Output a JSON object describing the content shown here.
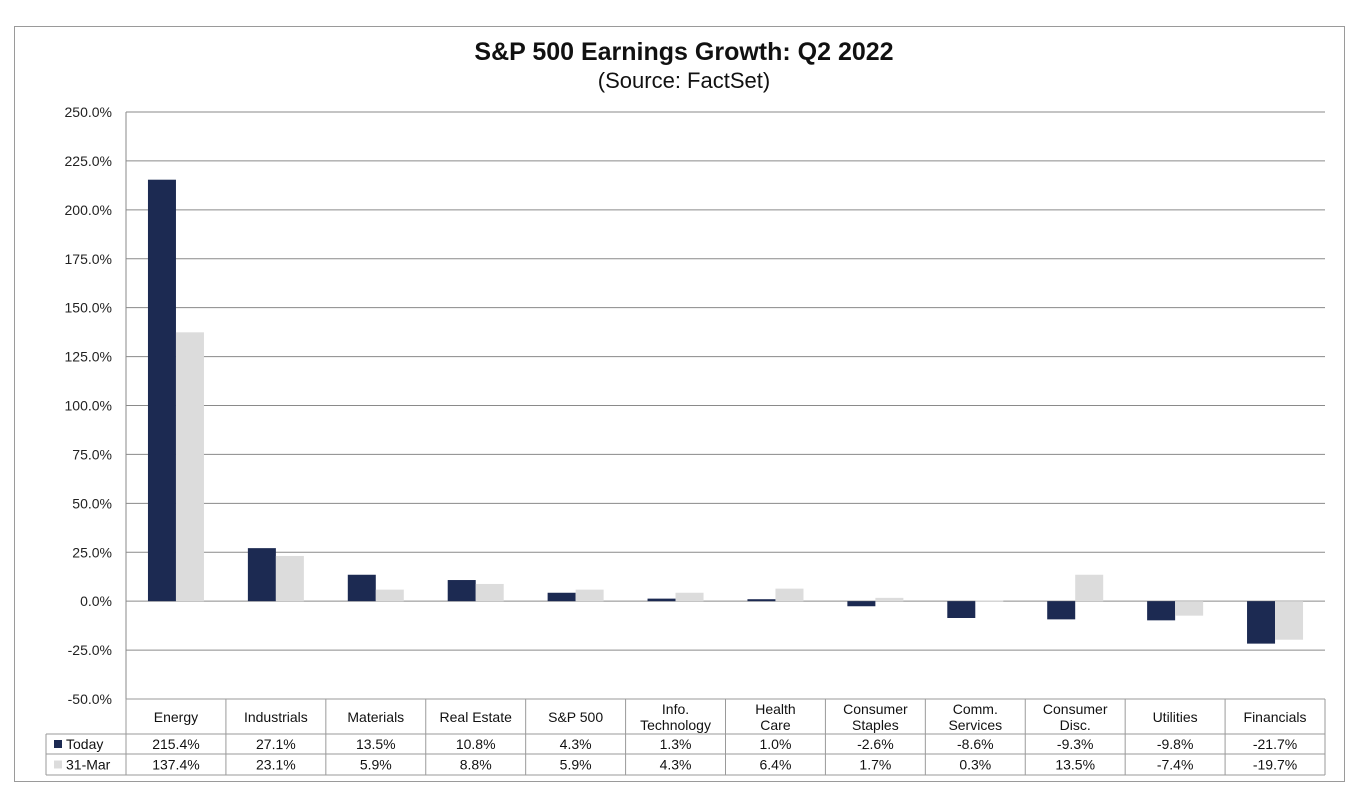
{
  "chart_data": {
    "type": "bar",
    "title": "S&P 500 Earnings Growth: Q2 2022",
    "subtitle": "(Source: FactSet)",
    "xlabel": "",
    "ylabel": "",
    "ylim": [
      -50,
      250
    ],
    "yticks": [
      250,
      225,
      200,
      175,
      150,
      125,
      100,
      75,
      50,
      25,
      0,
      -25,
      -50
    ],
    "ytick_labels": [
      "250.0%",
      "225.0%",
      "200.0%",
      "175.0%",
      "150.0%",
      "125.0%",
      "100.0%",
      "75.0%",
      "50.0%",
      "25.0%",
      "0.0%",
      "-25.0%",
      "-50.0%"
    ],
    "grid": true,
    "legend": "data-table-bottom",
    "categories": [
      [
        "Energy"
      ],
      [
        "Industrials"
      ],
      [
        "Materials"
      ],
      [
        "Real Estate"
      ],
      [
        "S&P 500"
      ],
      [
        "Info.",
        "Technology"
      ],
      [
        "Health",
        "Care"
      ],
      [
        "Consumer",
        "Staples"
      ],
      [
        "Comm.",
        "Services"
      ],
      [
        "Consumer",
        "Disc."
      ],
      [
        "Utilities"
      ],
      [
        "Financials"
      ]
    ],
    "series": [
      {
        "name": "Today",
        "color": "#1c2a52",
        "values": [
          215.4,
          27.1,
          13.5,
          10.8,
          4.3,
          1.3,
          1.0,
          -2.6,
          -8.6,
          -9.3,
          -9.8,
          -21.7
        ],
        "labels": [
          "215.4%",
          "27.1%",
          "13.5%",
          "10.8%",
          "4.3%",
          "1.3%",
          "1.0%",
          "-2.6%",
          "-8.6%",
          "-9.3%",
          "-9.8%",
          "-21.7%"
        ]
      },
      {
        "name": "31-Mar",
        "color": "#dcdcdc",
        "values": [
          137.4,
          23.1,
          5.9,
          8.8,
          5.9,
          4.3,
          6.4,
          1.7,
          0.3,
          13.5,
          -7.4,
          -19.7
        ],
        "labels": [
          "137.4%",
          "23.1%",
          "5.9%",
          "8.8%",
          "5.9%",
          "4.3%",
          "6.4%",
          "1.7%",
          "0.3%",
          "13.5%",
          "-7.4%",
          "-19.7%"
        ]
      }
    ]
  }
}
